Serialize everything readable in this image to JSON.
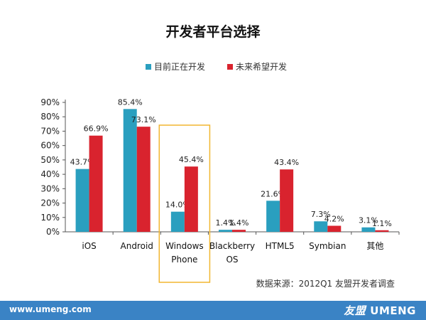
{
  "footer": {
    "url": "www.umeng.com",
    "brand_zh": "友盟",
    "brand_en": "UMENG"
  },
  "source_note": "数据来源：2012Q1 友盟开发者调查",
  "colors": {
    "current": "#2a9fbf",
    "future": "#d9232e",
    "highlight": "#f2b630",
    "footer": "#3a83c5"
  },
  "chart_data": {
    "type": "bar",
    "title": "开发者平台选择",
    "categories": [
      "iOS",
      "Android",
      "Windows Phone",
      "Blackberry OS",
      "HTML5",
      "Symbian",
      "其他"
    ],
    "series": [
      {
        "name": "目前正在开发",
        "values": [
          43.7,
          85.4,
          14.0,
          1.4,
          21.6,
          7.3,
          3.1
        ],
        "labels": [
          "43.7%",
          "85.4%",
          "14.0%",
          "1.4%",
          "21.6%",
          "7.3%",
          "3.1%"
        ]
      },
      {
        "name": "未来希望开发",
        "values": [
          66.9,
          73.1,
          45.4,
          1.4,
          43.4,
          4.2,
          1.1
        ],
        "labels": [
          "66.9%",
          "73.1%",
          "45.4%",
          "1.4%",
          "43.4%",
          "4.2%",
          "1.1%"
        ]
      }
    ],
    "yticks": [
      "0%",
      "10%",
      "20%",
      "30%",
      "40%",
      "50%",
      "60%",
      "70%",
      "80%",
      "90%"
    ],
    "ylim": [
      0,
      90
    ],
    "xlabel": "",
    "ylabel": "",
    "grid": false,
    "legend": "top-center",
    "highlight_category": "Windows Phone"
  }
}
